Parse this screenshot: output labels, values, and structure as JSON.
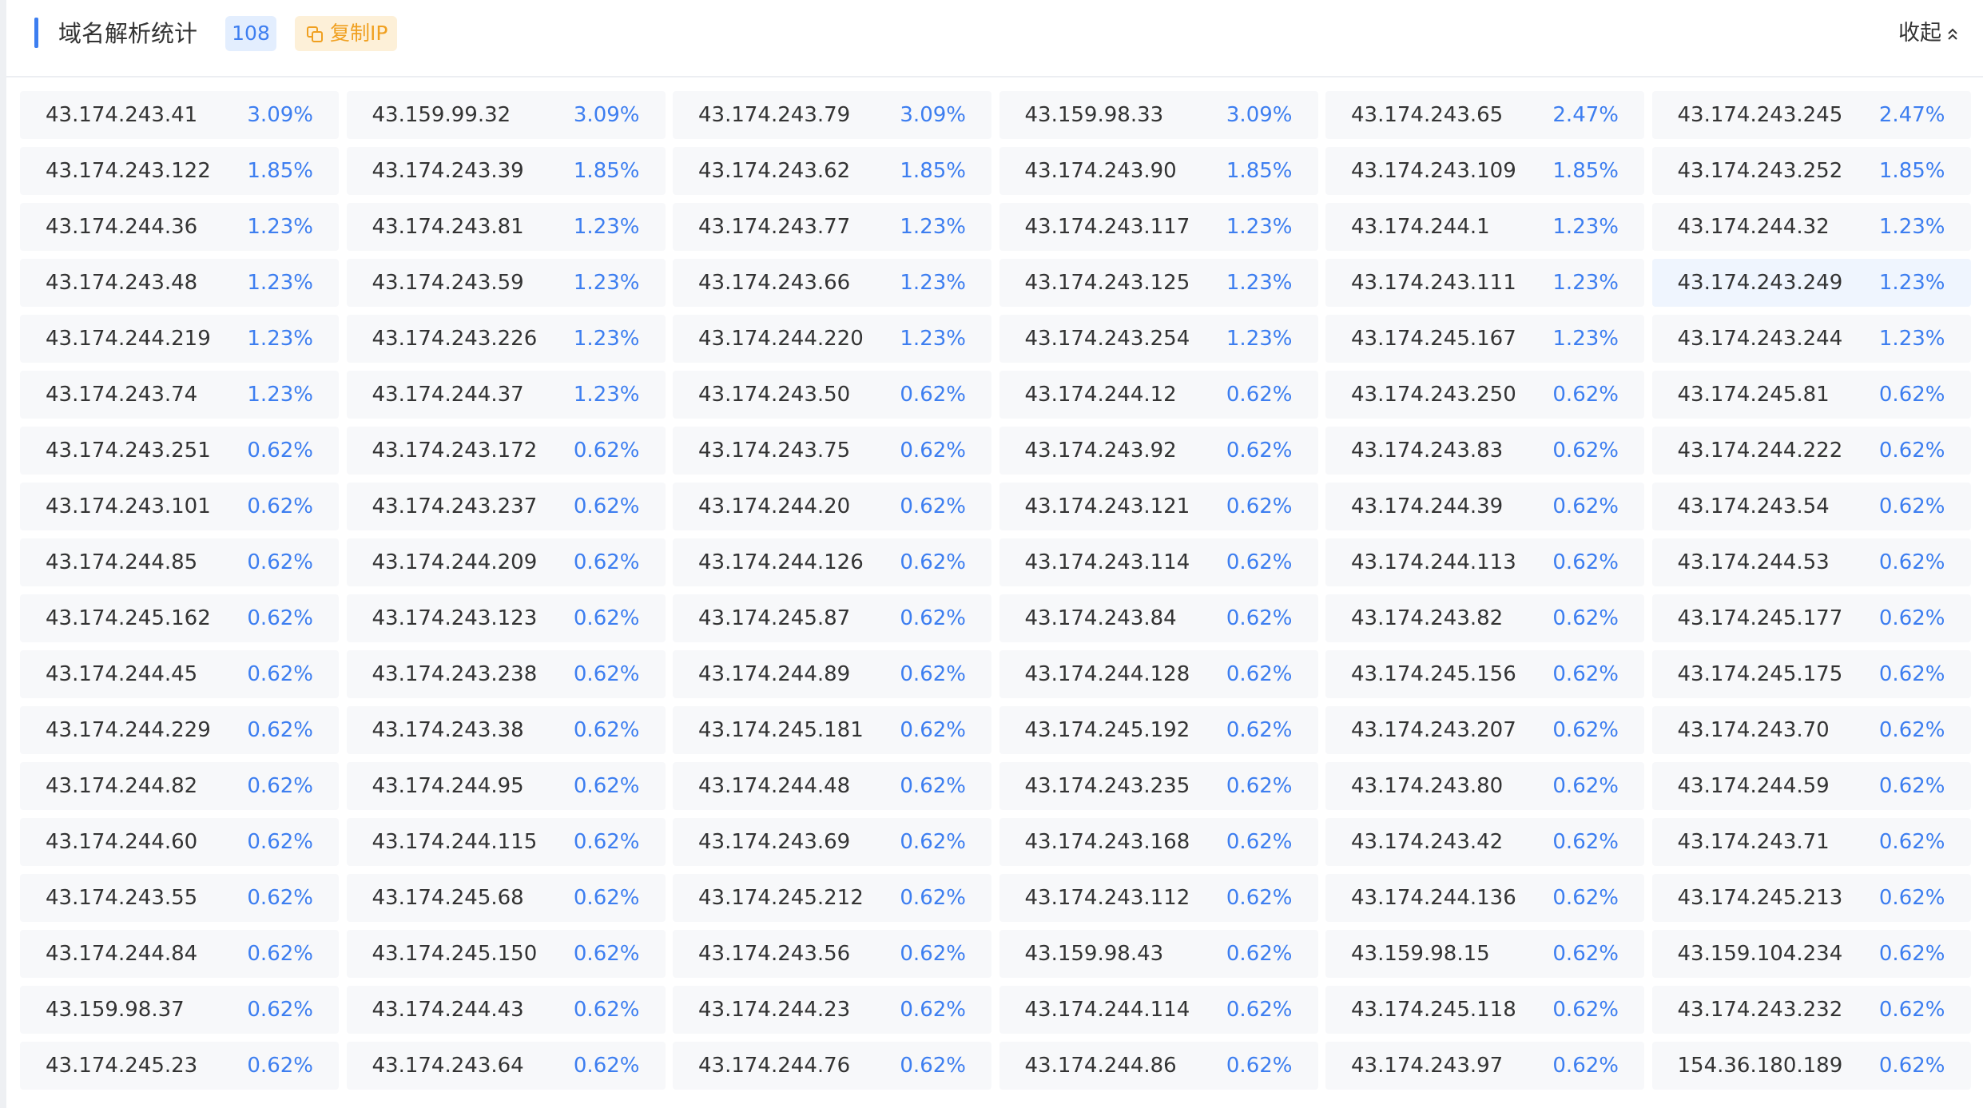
{
  "header": {
    "title": "域名解析统计",
    "count": "108",
    "copy_button": "复制IP",
    "collapse_button": "收起"
  },
  "items": [
    {
      "ip": "43.174.243.41",
      "percent": "3.09%"
    },
    {
      "ip": "43.159.99.32",
      "percent": "3.09%"
    },
    {
      "ip": "43.174.243.79",
      "percent": "3.09%"
    },
    {
      "ip": "43.159.98.33",
      "percent": "3.09%"
    },
    {
      "ip": "43.174.243.65",
      "percent": "2.47%"
    },
    {
      "ip": "43.174.243.245",
      "percent": "2.47%"
    },
    {
      "ip": "43.174.243.122",
      "percent": "1.85%"
    },
    {
      "ip": "43.174.243.39",
      "percent": "1.85%"
    },
    {
      "ip": "43.174.243.62",
      "percent": "1.85%"
    },
    {
      "ip": "43.174.243.90",
      "percent": "1.85%"
    },
    {
      "ip": "43.174.243.109",
      "percent": "1.85%"
    },
    {
      "ip": "43.174.243.252",
      "percent": "1.85%"
    },
    {
      "ip": "43.174.244.36",
      "percent": "1.23%"
    },
    {
      "ip": "43.174.243.81",
      "percent": "1.23%"
    },
    {
      "ip": "43.174.243.77",
      "percent": "1.23%"
    },
    {
      "ip": "43.174.243.117",
      "percent": "1.23%"
    },
    {
      "ip": "43.174.244.1",
      "percent": "1.23%"
    },
    {
      "ip": "43.174.244.32",
      "percent": "1.23%"
    },
    {
      "ip": "43.174.243.48",
      "percent": "1.23%"
    },
    {
      "ip": "43.174.243.59",
      "percent": "1.23%"
    },
    {
      "ip": "43.174.243.66",
      "percent": "1.23%"
    },
    {
      "ip": "43.174.243.125",
      "percent": "1.23%"
    },
    {
      "ip": "43.174.243.111",
      "percent": "1.23%"
    },
    {
      "ip": "43.174.243.249",
      "percent": "1.23%"
    },
    {
      "ip": "43.174.244.219",
      "percent": "1.23%"
    },
    {
      "ip": "43.174.243.226",
      "percent": "1.23%"
    },
    {
      "ip": "43.174.244.220",
      "percent": "1.23%"
    },
    {
      "ip": "43.174.243.254",
      "percent": "1.23%"
    },
    {
      "ip": "43.174.245.167",
      "percent": "1.23%"
    },
    {
      "ip": "43.174.243.244",
      "percent": "1.23%"
    },
    {
      "ip": "43.174.243.74",
      "percent": "1.23%"
    },
    {
      "ip": "43.174.244.37",
      "percent": "1.23%"
    },
    {
      "ip": "43.174.243.50",
      "percent": "0.62%"
    },
    {
      "ip": "43.174.244.12",
      "percent": "0.62%"
    },
    {
      "ip": "43.174.243.250",
      "percent": "0.62%"
    },
    {
      "ip": "43.174.245.81",
      "percent": "0.62%"
    },
    {
      "ip": "43.174.243.251",
      "percent": "0.62%"
    },
    {
      "ip": "43.174.243.172",
      "percent": "0.62%"
    },
    {
      "ip": "43.174.243.75",
      "percent": "0.62%"
    },
    {
      "ip": "43.174.243.92",
      "percent": "0.62%"
    },
    {
      "ip": "43.174.243.83",
      "percent": "0.62%"
    },
    {
      "ip": "43.174.244.222",
      "percent": "0.62%"
    },
    {
      "ip": "43.174.243.101",
      "percent": "0.62%"
    },
    {
      "ip": "43.174.243.237",
      "percent": "0.62%"
    },
    {
      "ip": "43.174.244.20",
      "percent": "0.62%"
    },
    {
      "ip": "43.174.243.121",
      "percent": "0.62%"
    },
    {
      "ip": "43.174.244.39",
      "percent": "0.62%"
    },
    {
      "ip": "43.174.243.54",
      "percent": "0.62%"
    },
    {
      "ip": "43.174.244.85",
      "percent": "0.62%"
    },
    {
      "ip": "43.174.244.209",
      "percent": "0.62%"
    },
    {
      "ip": "43.174.244.126",
      "percent": "0.62%"
    },
    {
      "ip": "43.174.243.114",
      "percent": "0.62%"
    },
    {
      "ip": "43.174.244.113",
      "percent": "0.62%"
    },
    {
      "ip": "43.174.244.53",
      "percent": "0.62%"
    },
    {
      "ip": "43.174.245.162",
      "percent": "0.62%"
    },
    {
      "ip": "43.174.243.123",
      "percent": "0.62%"
    },
    {
      "ip": "43.174.245.87",
      "percent": "0.62%"
    },
    {
      "ip": "43.174.243.84",
      "percent": "0.62%"
    },
    {
      "ip": "43.174.243.82",
      "percent": "0.62%"
    },
    {
      "ip": "43.174.245.177",
      "percent": "0.62%"
    },
    {
      "ip": "43.174.244.45",
      "percent": "0.62%"
    },
    {
      "ip": "43.174.243.238",
      "percent": "0.62%"
    },
    {
      "ip": "43.174.244.89",
      "percent": "0.62%"
    },
    {
      "ip": "43.174.244.128",
      "percent": "0.62%"
    },
    {
      "ip": "43.174.245.156",
      "percent": "0.62%"
    },
    {
      "ip": "43.174.245.175",
      "percent": "0.62%"
    },
    {
      "ip": "43.174.244.229",
      "percent": "0.62%"
    },
    {
      "ip": "43.174.243.38",
      "percent": "0.62%"
    },
    {
      "ip": "43.174.245.181",
      "percent": "0.62%"
    },
    {
      "ip": "43.174.245.192",
      "percent": "0.62%"
    },
    {
      "ip": "43.174.243.207",
      "percent": "0.62%"
    },
    {
      "ip": "43.174.243.70",
      "percent": "0.62%"
    },
    {
      "ip": "43.174.244.82",
      "percent": "0.62%"
    },
    {
      "ip": "43.174.244.95",
      "percent": "0.62%"
    },
    {
      "ip": "43.174.244.48",
      "percent": "0.62%"
    },
    {
      "ip": "43.174.243.235",
      "percent": "0.62%"
    },
    {
      "ip": "43.174.243.80",
      "percent": "0.62%"
    },
    {
      "ip": "43.174.244.59",
      "percent": "0.62%"
    },
    {
      "ip": "43.174.244.60",
      "percent": "0.62%"
    },
    {
      "ip": "43.174.244.115",
      "percent": "0.62%"
    },
    {
      "ip": "43.174.243.69",
      "percent": "0.62%"
    },
    {
      "ip": "43.174.243.168",
      "percent": "0.62%"
    },
    {
      "ip": "43.174.243.42",
      "percent": "0.62%"
    },
    {
      "ip": "43.174.243.71",
      "percent": "0.62%"
    },
    {
      "ip": "43.174.243.55",
      "percent": "0.62%"
    },
    {
      "ip": "43.174.245.68",
      "percent": "0.62%"
    },
    {
      "ip": "43.174.245.212",
      "percent": "0.62%"
    },
    {
      "ip": "43.174.243.112",
      "percent": "0.62%"
    },
    {
      "ip": "43.174.244.136",
      "percent": "0.62%"
    },
    {
      "ip": "43.174.245.213",
      "percent": "0.62%"
    },
    {
      "ip": "43.174.244.84",
      "percent": "0.62%"
    },
    {
      "ip": "43.174.245.150",
      "percent": "0.62%"
    },
    {
      "ip": "43.174.243.56",
      "percent": "0.62%"
    },
    {
      "ip": "43.159.98.43",
      "percent": "0.62%"
    },
    {
      "ip": "43.159.98.15",
      "percent": "0.62%"
    },
    {
      "ip": "43.159.104.234",
      "percent": "0.62%"
    },
    {
      "ip": "43.159.98.37",
      "percent": "0.62%"
    },
    {
      "ip": "43.174.244.43",
      "percent": "0.62%"
    },
    {
      "ip": "43.174.244.23",
      "percent": "0.62%"
    },
    {
      "ip": "43.174.244.114",
      "percent": "0.62%"
    },
    {
      "ip": "43.174.245.118",
      "percent": "0.62%"
    },
    {
      "ip": "43.174.243.232",
      "percent": "0.62%"
    },
    {
      "ip": "43.174.245.23",
      "percent": "0.62%"
    },
    {
      "ip": "43.174.243.64",
      "percent": "0.62%"
    },
    {
      "ip": "43.174.244.76",
      "percent": "0.62%"
    },
    {
      "ip": "43.174.244.86",
      "percent": "0.62%"
    },
    {
      "ip": "43.174.243.97",
      "percent": "0.62%"
    },
    {
      "ip": "154.36.180.189",
      "percent": "0.62%"
    }
  ]
}
